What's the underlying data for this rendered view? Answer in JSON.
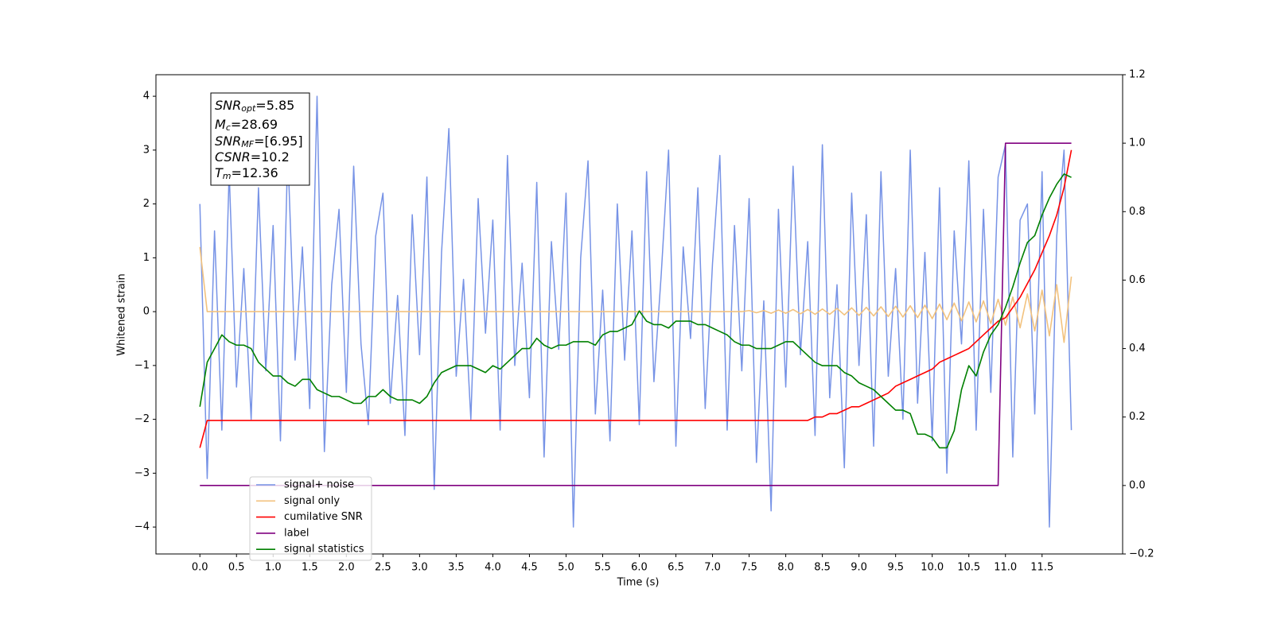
{
  "chart_data": {
    "type": "line",
    "xlabel": "Time (s)",
    "ylabel": "Whitened strain",
    "xlim": [
      -0.6,
      12.6
    ],
    "ylim": [
      -4.5,
      4.4
    ],
    "y2lim": [
      -0.2,
      1.2
    ],
    "xticks": [
      {
        "value": 0,
        "label": "0.0"
      },
      0.5,
      {
        "value": 1,
        "label": "1.0"
      },
      1.5,
      {
        "value": 2,
        "label": "2.0"
      },
      2.5,
      {
        "value": 3,
        "label": "3.0"
      },
      3.5,
      {
        "value": 4,
        "label": "4.0"
      },
      4.5,
      {
        "value": 5,
        "label": "5.0"
      },
      5.5,
      {
        "value": 6,
        "label": "6.0"
      },
      6.5,
      {
        "value": 7,
        "label": "7.0"
      },
      7.5,
      {
        "value": 8,
        "label": "8.0"
      },
      8.5,
      {
        "value": 9,
        "label": "9.0"
      },
      9.5,
      {
        "value": 10,
        "label": "10.0"
      },
      10.5,
      {
        "value": 11,
        "label": "11.0"
      },
      11.5
    ],
    "yticks": [
      {
        "value": -4,
        "label": "−4"
      },
      {
        "value": -3,
        "label": "−3"
      },
      {
        "value": -2,
        "label": "−2"
      },
      {
        "value": -1,
        "label": "−1"
      },
      0,
      1,
      2,
      3,
      4
    ],
    "y2ticks": [
      {
        "value": -0.2,
        "label": "−0.2"
      },
      {
        "value": 0,
        "label": "0.0"
      },
      0.2,
      0.4,
      0.6,
      0.8,
      {
        "value": 1,
        "label": "1.0"
      },
      1.2
    ],
    "legend": "lower left",
    "annotations": [
      {
        "symbol": "SNR",
        "subscript": "opt",
        "text": "=5.85"
      },
      {
        "symbol": "M",
        "subscript": "c",
        "text": "=28.69"
      },
      {
        "symbol": "SNR",
        "subscript": "MF",
        "text": "=[6.95]"
      },
      {
        "symbol": "CSNR",
        "subscript": "",
        "text": "=10.2"
      },
      {
        "symbol": "T",
        "subscript": "m",
        "text": "=12.36"
      }
    ],
    "x": [
      0.0,
      0.1,
      0.2,
      0.3,
      0.4,
      0.5,
      0.6,
      0.7,
      0.8,
      0.9,
      1.0,
      1.1,
      1.2,
      1.3,
      1.4,
      1.5,
      1.6,
      1.7,
      1.8,
      1.9,
      2.0,
      2.1,
      2.2,
      2.3,
      2.4,
      2.5,
      2.6,
      2.7,
      2.8,
      2.9,
      3.0,
      3.1,
      3.2,
      3.3,
      3.4,
      3.5,
      3.6,
      3.7,
      3.8,
      3.9,
      4.0,
      4.1,
      4.2,
      4.3,
      4.4,
      4.5,
      4.6,
      4.7,
      4.8,
      4.9,
      5.0,
      5.1,
      5.2,
      5.3,
      5.4,
      5.5,
      5.6,
      5.7,
      5.8,
      5.9,
      6.0,
      6.1,
      6.2,
      6.3,
      6.4,
      6.5,
      6.6,
      6.7,
      6.8,
      6.9,
      7.0,
      7.1,
      7.2,
      7.3,
      7.4,
      7.5,
      7.6,
      7.7,
      7.8,
      7.9,
      8.0,
      8.1,
      8.2,
      8.3,
      8.4,
      8.5,
      8.6,
      8.7,
      8.8,
      8.9,
      9.0,
      9.1,
      9.2,
      9.3,
      9.4,
      9.5,
      9.6,
      9.7,
      9.8,
      9.9,
      10.0,
      10.1,
      10.2,
      10.3,
      10.4,
      10.5,
      10.6,
      10.7,
      10.8,
      10.9,
      11.0,
      11.1,
      11.2,
      11.3,
      11.4,
      11.5,
      11.6,
      11.7,
      11.8,
      11.9
    ],
    "series": [
      {
        "name": "signal+ noise",
        "color": "#7793e6",
        "axis": "y",
        "values": [
          2.0,
          -3.1,
          1.5,
          -2.2,
          2.6,
          -1.4,
          0.8,
          -2.0,
          2.3,
          -1.1,
          1.6,
          -2.4,
          3.0,
          -0.9,
          1.2,
          -1.8,
          4.0,
          -2.6,
          0.5,
          1.9,
          -1.5,
          2.7,
          -0.6,
          -2.1,
          1.4,
          2.2,
          -1.7,
          0.3,
          -2.3,
          1.8,
          -0.8,
          2.5,
          -3.3,
          1.1,
          3.4,
          -1.2,
          0.6,
          -2.0,
          2.1,
          -0.4,
          1.7,
          -2.2,
          2.9,
          -1.0,
          0.9,
          -1.6,
          2.4,
          -2.7,
          1.3,
          -0.7,
          2.2,
          -4.0,
          1.0,
          2.8,
          -1.9,
          0.4,
          -2.4,
          2.0,
          -0.9,
          1.5,
          -2.1,
          2.6,
          -1.3,
          0.7,
          3.0,
          -2.5,
          1.2,
          -0.5,
          2.3,
          -1.8,
          0.9,
          2.9,
          -2.2,
          1.6,
          -1.1,
          2.1,
          -2.8,
          0.2,
          -3.7,
          1.9,
          -1.4,
          2.7,
          -0.8,
          1.3,
          -2.3,
          3.1,
          -1.6,
          0.5,
          -2.9,
          2.2,
          -1.0,
          1.8,
          -2.5,
          2.6,
          -1.2,
          0.8,
          -2.0,
          3.0,
          -1.7,
          1.1,
          -2.4,
          2.3,
          -3.0,
          1.5,
          -0.6,
          2.8,
          -2.2,
          1.9,
          -1.5,
          2.5,
          3.1,
          -2.7,
          1.7,
          2.0,
          -1.9,
          2.6,
          -4.0,
          1.4,
          3.0,
          -2.2
        ]
      },
      {
        "name": "signal only",
        "color": "#f2c27e",
        "axis": "y",
        "values": [
          1.2,
          0,
          0,
          0,
          0,
          0,
          0,
          0,
          0,
          0,
          0,
          0,
          0,
          0,
          0,
          0,
          0,
          0,
          0,
          0,
          0,
          0,
          0,
          0,
          0,
          0,
          0,
          0,
          0,
          0,
          0,
          0,
          0,
          0,
          0,
          0,
          0,
          0,
          0,
          0,
          0,
          0,
          0,
          0,
          0,
          0,
          0,
          0,
          0,
          0,
          0,
          0,
          0,
          0,
          0,
          0,
          0,
          0,
          0,
          0,
          0,
          0,
          0,
          0,
          0,
          0,
          0,
          0,
          0,
          0,
          0,
          0,
          0,
          0,
          0,
          0.02,
          -0.02,
          0.02,
          -0.03,
          0.03,
          -0.03,
          0.04,
          -0.04,
          0.04,
          -0.05,
          0.05,
          -0.05,
          0.06,
          -0.06,
          0.07,
          -0.07,
          0.08,
          -0.08,
          0.09,
          -0.09,
          0.1,
          -0.1,
          0.11,
          -0.11,
          0.12,
          -0.13,
          0.14,
          -0.15,
          0.16,
          -0.17,
          0.18,
          -0.19,
          0.2,
          -0.22,
          0.23,
          -0.25,
          0.27,
          -0.3,
          0.33,
          -0.36,
          0.4,
          -0.45,
          0.5,
          -0.57,
          0.65
        ]
      },
      {
        "name": "cumilative SNR",
        "color": "#ff0000",
        "axis": "y2",
        "values": [
          0.11,
          0.19,
          0.19,
          0.19,
          0.19,
          0.19,
          0.19,
          0.19,
          0.19,
          0.19,
          0.19,
          0.19,
          0.19,
          0.19,
          0.19,
          0.19,
          0.19,
          0.19,
          0.19,
          0.19,
          0.19,
          0.19,
          0.19,
          0.19,
          0.19,
          0.19,
          0.19,
          0.19,
          0.19,
          0.19,
          0.19,
          0.19,
          0.19,
          0.19,
          0.19,
          0.19,
          0.19,
          0.19,
          0.19,
          0.19,
          0.19,
          0.19,
          0.19,
          0.19,
          0.19,
          0.19,
          0.19,
          0.19,
          0.19,
          0.19,
          0.19,
          0.19,
          0.19,
          0.19,
          0.19,
          0.19,
          0.19,
          0.19,
          0.19,
          0.19,
          0.19,
          0.19,
          0.19,
          0.19,
          0.19,
          0.19,
          0.19,
          0.19,
          0.19,
          0.19,
          0.19,
          0.19,
          0.19,
          0.19,
          0.19,
          0.19,
          0.19,
          0.19,
          0.19,
          0.19,
          0.19,
          0.19,
          0.19,
          0.19,
          0.2,
          0.2,
          0.21,
          0.21,
          0.22,
          0.23,
          0.23,
          0.24,
          0.25,
          0.26,
          0.27,
          0.29,
          0.3,
          0.31,
          0.32,
          0.33,
          0.34,
          0.36,
          0.37,
          0.38,
          0.39,
          0.4,
          0.42,
          0.44,
          0.46,
          0.48,
          0.49,
          0.52,
          0.55,
          0.59,
          0.63,
          0.68,
          0.73,
          0.79,
          0.87,
          0.98
        ]
      },
      {
        "name": "label",
        "color": "#800080",
        "axis": "y2",
        "values": [
          0,
          0,
          0,
          0,
          0,
          0,
          0,
          0,
          0,
          0,
          0,
          0,
          0,
          0,
          0,
          0,
          0,
          0,
          0,
          0,
          0,
          0,
          0,
          0,
          0,
          0,
          0,
          0,
          0,
          0,
          0,
          0,
          0,
          0,
          0,
          0,
          0,
          0,
          0,
          0,
          0,
          0,
          0,
          0,
          0,
          0,
          0,
          0,
          0,
          0,
          0,
          0,
          0,
          0,
          0,
          0,
          0,
          0,
          0,
          0,
          0,
          0,
          0,
          0,
          0,
          0,
          0,
          0,
          0,
          0,
          0,
          0,
          0,
          0,
          0,
          0,
          0,
          0,
          0,
          0,
          0,
          0,
          0,
          0,
          0,
          0,
          0,
          0,
          0,
          0,
          0,
          0,
          0,
          0,
          0,
          0,
          0,
          0,
          0,
          0,
          0,
          0,
          0,
          0,
          0,
          0,
          0,
          0,
          0,
          0,
          1,
          1,
          1,
          1,
          1,
          1,
          1,
          1,
          1,
          1
        ]
      },
      {
        "name": "signal statistics",
        "color": "#008000",
        "axis": "y2",
        "values": [
          0.23,
          0.36,
          0.4,
          0.44,
          0.42,
          0.41,
          0.41,
          0.4,
          0.36,
          0.34,
          0.32,
          0.32,
          0.3,
          0.29,
          0.31,
          0.31,
          0.28,
          0.27,
          0.26,
          0.26,
          0.25,
          0.24,
          0.24,
          0.26,
          0.26,
          0.28,
          0.26,
          0.25,
          0.25,
          0.25,
          0.24,
          0.26,
          0.3,
          0.33,
          0.34,
          0.35,
          0.35,
          0.35,
          0.34,
          0.33,
          0.35,
          0.34,
          0.36,
          0.38,
          0.4,
          0.4,
          0.43,
          0.41,
          0.4,
          0.41,
          0.41,
          0.42,
          0.42,
          0.42,
          0.41,
          0.44,
          0.45,
          0.45,
          0.46,
          0.47,
          0.51,
          0.48,
          0.47,
          0.47,
          0.46,
          0.48,
          0.48,
          0.48,
          0.47,
          0.47,
          0.46,
          0.45,
          0.44,
          0.42,
          0.41,
          0.41,
          0.4,
          0.4,
          0.4,
          0.41,
          0.42,
          0.42,
          0.4,
          0.38,
          0.36,
          0.35,
          0.35,
          0.35,
          0.33,
          0.32,
          0.3,
          0.29,
          0.28,
          0.26,
          0.24,
          0.22,
          0.22,
          0.21,
          0.15,
          0.15,
          0.14,
          0.11,
          0.11,
          0.16,
          0.28,
          0.35,
          0.32,
          0.39,
          0.44,
          0.47,
          0.52,
          0.58,
          0.65,
          0.71,
          0.73,
          0.79,
          0.84,
          0.88,
          0.91,
          0.9
        ]
      }
    ]
  }
}
